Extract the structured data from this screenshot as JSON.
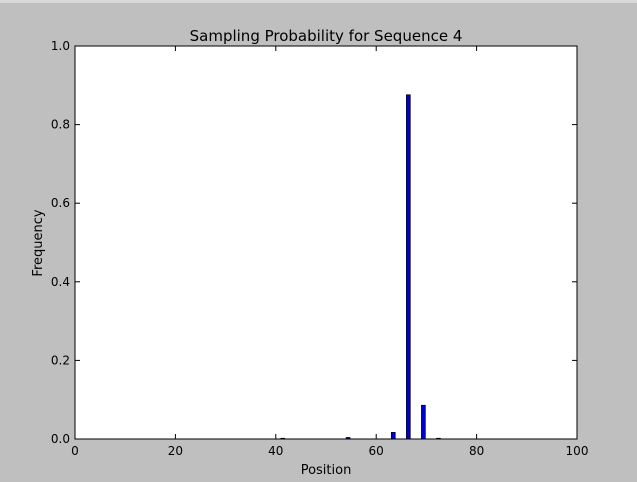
{
  "chart_data": {
    "type": "bar",
    "title": "Sampling Probability for Sequence 4",
    "xlabel": "Position",
    "ylabel": "Frequency",
    "xlim": [
      0,
      100
    ],
    "ylim": [
      0,
      1.0
    ],
    "xticks": [
      "0",
      "20",
      "40",
      "60",
      "80",
      "100"
    ],
    "yticks": [
      "0.0",
      "0.2",
      "0.4",
      "0.6",
      "0.8",
      "1.0"
    ],
    "x": [
      41,
      54,
      63,
      66,
      69,
      72
    ],
    "values": [
      0.002,
      0.004,
      0.017,
      0.876,
      0.086,
      0.002
    ],
    "bar_width": 0.8,
    "bar_color": "#0000cc",
    "grid": false
  }
}
